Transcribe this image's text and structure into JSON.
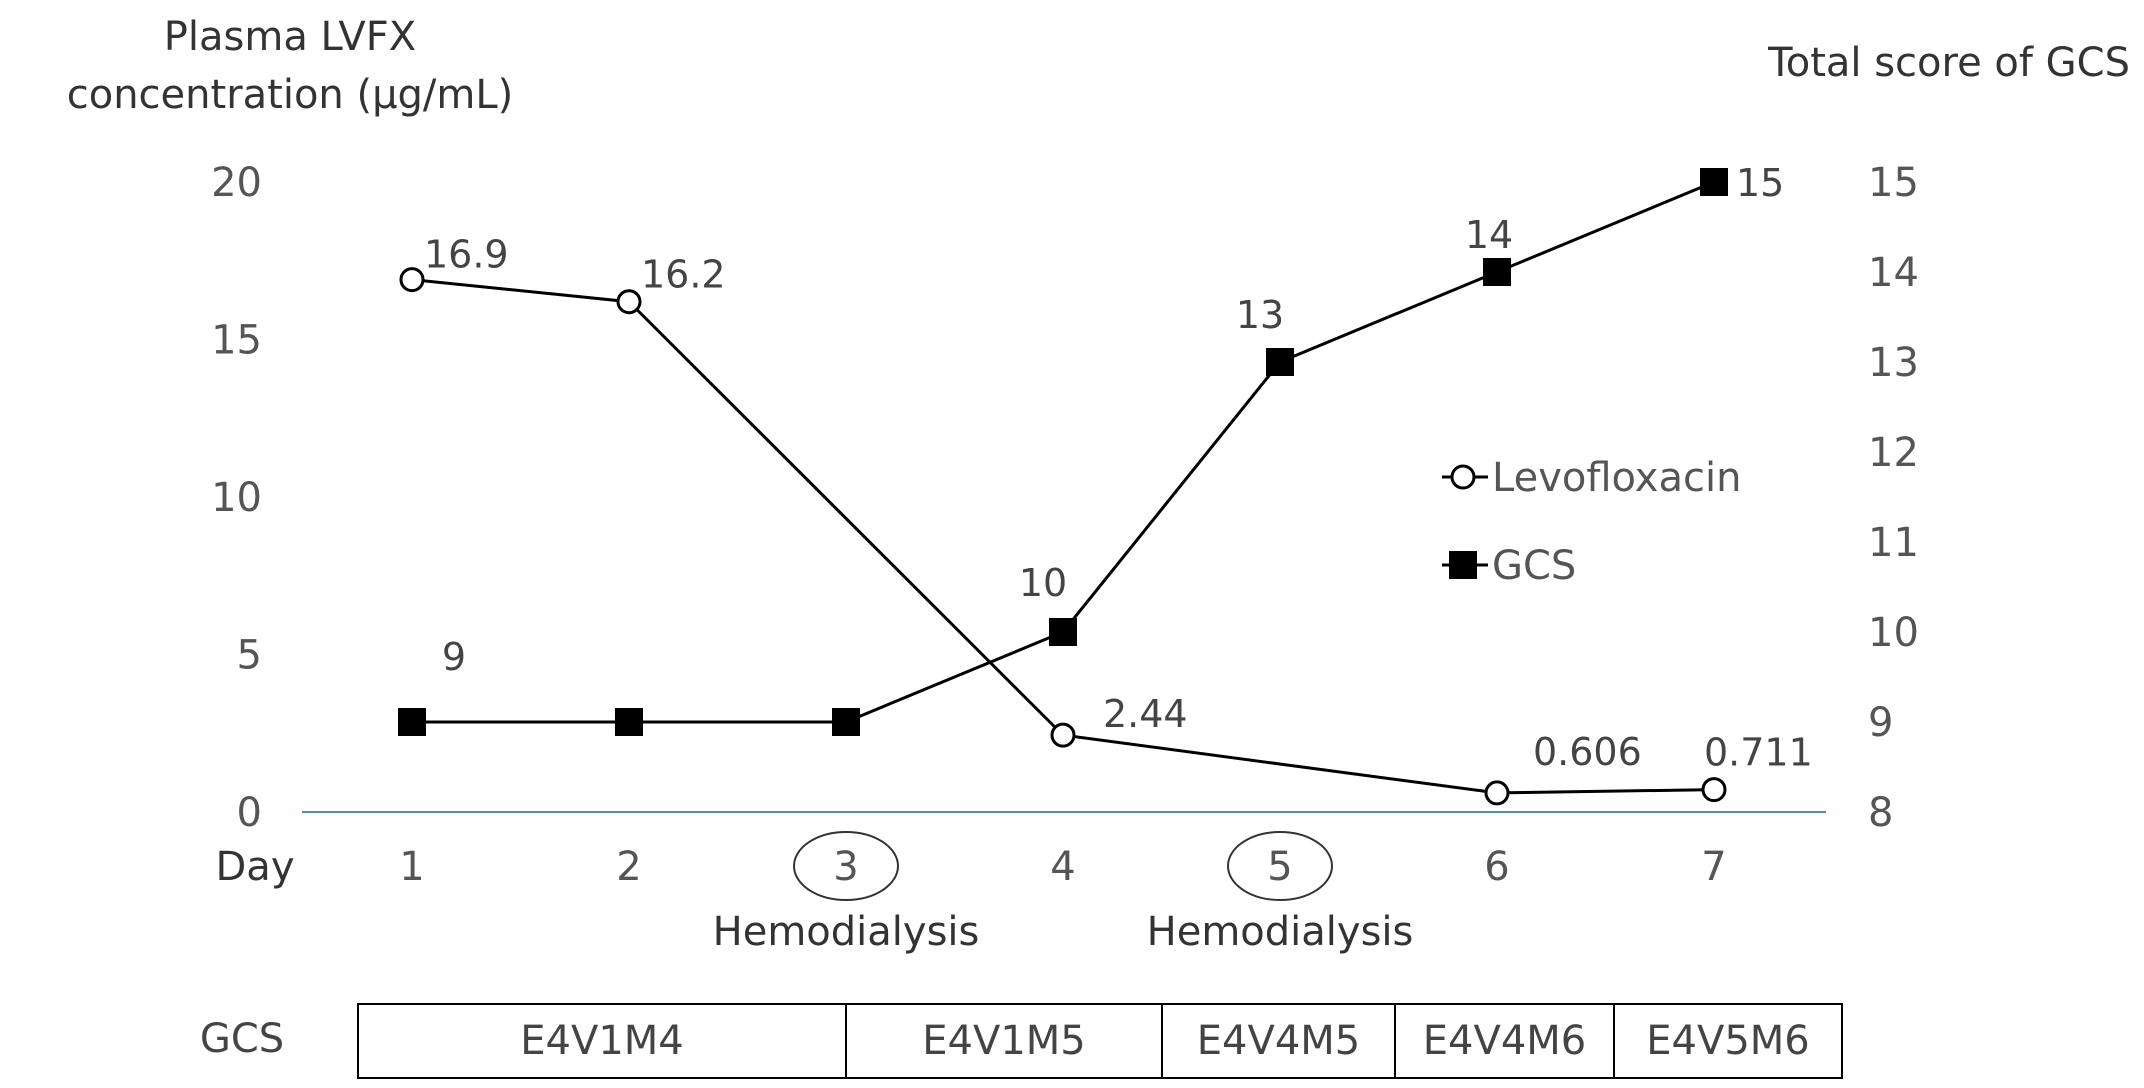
{
  "chart_data": {
    "type": "line",
    "left_axis_title_line1": "Plasma LVFX",
    "left_axis_title_line2": "concentration (μg/mL)",
    "right_axis_title": "Total score of GCS",
    "x_label": "Day",
    "categories": [
      "1",
      "2",
      "3",
      "4",
      "5",
      "6",
      "7"
    ],
    "circled_days": [
      "3",
      "5"
    ],
    "hemodialysis_label": "Hemodialysis",
    "left_axis": {
      "ticks": [
        "0",
        "5",
        "10",
        "15",
        "20"
      ],
      "ylim": [
        0,
        20
      ]
    },
    "right_axis": {
      "ticks": [
        "8",
        "9",
        "10",
        "11",
        "12",
        "13",
        "14",
        "15"
      ],
      "ylim": [
        8,
        15
      ]
    },
    "series": [
      {
        "name": "Levofloxacin",
        "axis": "left",
        "marker": "open-circle",
        "x": [
          1,
          2,
          4,
          6,
          7
        ],
        "values": [
          16.9,
          16.2,
          2.44,
          0.606,
          0.711
        ],
        "labels": [
          "16.9",
          "16.2",
          "2.44",
          "0.606",
          "0.711"
        ]
      },
      {
        "name": "GCS",
        "axis": "right",
        "marker": "filled-square",
        "x": [
          1,
          2,
          3,
          4,
          5,
          6,
          7
        ],
        "values": [
          9,
          9,
          9,
          10,
          13,
          14,
          15
        ],
        "labels": [
          "9",
          "",
          "",
          "10",
          "13",
          "14",
          "15"
        ]
      }
    ],
    "legend_position": "right-middle",
    "baseline_color": "#4a90c8"
  },
  "gcs_table": {
    "label": "GCS",
    "cells": [
      {
        "text": "E4V1M4",
        "from_day": 1,
        "to_day": 3
      },
      {
        "text": "E4V1M5",
        "from_day": 3,
        "to_day": 4.5
      },
      {
        "text": "E4V4M5",
        "from_day": 4.5,
        "to_day": 5.5
      },
      {
        "text": "E4V4M6",
        "from_day": 5.5,
        "to_day": 6.5
      },
      {
        "text": "E4V5M6",
        "from_day": 6.5,
        "to_day": 7.5
      }
    ]
  }
}
